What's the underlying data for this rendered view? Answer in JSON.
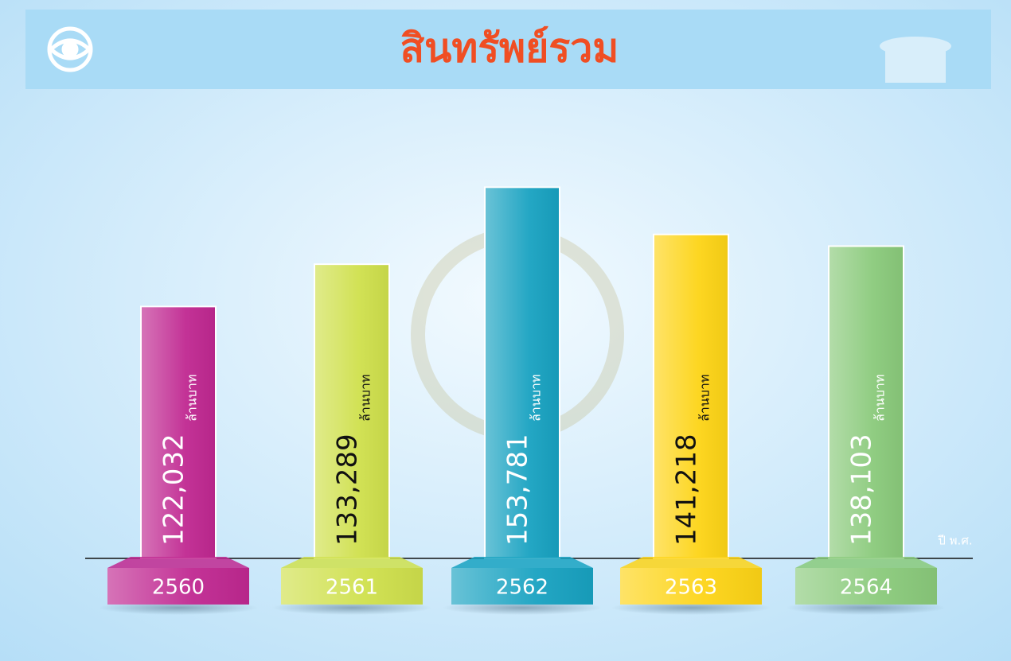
{
  "chart_data": {
    "type": "bar",
    "title": "สินทรัพย์รวม",
    "categories": [
      "2560",
      "2561",
      "2562",
      "2563",
      "2564"
    ],
    "values": [
      122032,
      133289,
      153781,
      141218,
      138103
    ],
    "value_labels": [
      "122,032",
      "133,289",
      "153,781",
      "141,218",
      "138,103"
    ],
    "unit_label": "ล้านบาท",
    "x_label": "ปี พ.ศ.",
    "colors": [
      "#c02891",
      "#cfe04c",
      "#18a2c1",
      "#fdd416",
      "#8aca7b"
    ],
    "label_colors": [
      "#ffffff",
      "#111111",
      "#ffffff",
      "#111111",
      "#ffffff"
    ],
    "ylim": [
      55000,
      160000
    ]
  }
}
